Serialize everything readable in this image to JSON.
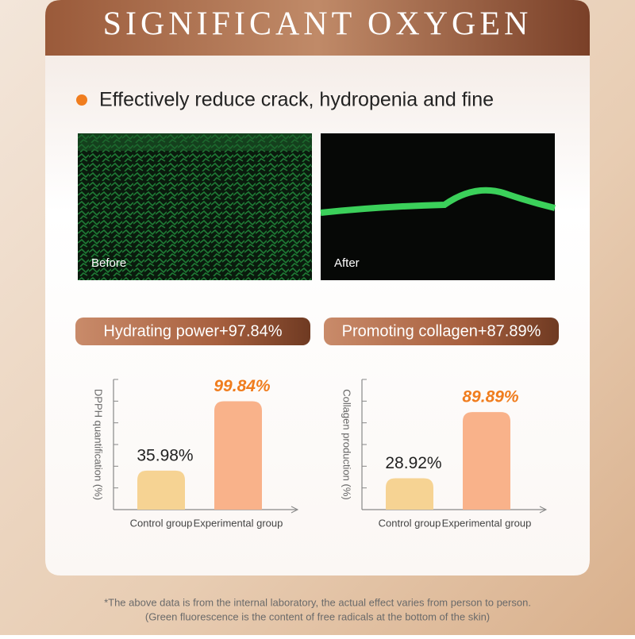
{
  "header": {
    "title": "SIGNIFICANT OXYGEN"
  },
  "bullet": "Effectively reduce crack, hydropenia and fine",
  "images": [
    {
      "label": "Before"
    },
    {
      "label": "After"
    }
  ],
  "chart_data": [
    {
      "type": "bar",
      "title": "Hydrating power+97.84%",
      "y_label": "DPPH quantification (%)",
      "categories": [
        "Control group",
        "Experimental group"
      ],
      "values": [
        35.98,
        99.84
      ],
      "value_labels": [
        "35.98%",
        "99.84%"
      ],
      "colors": [
        "#f6d393",
        "#f9b28a"
      ],
      "ylim": [
        0,
        120
      ],
      "yticks": [
        20,
        40,
        60,
        80,
        100,
        120
      ]
    },
    {
      "type": "bar",
      "title": "Promoting collagen+87.89%",
      "y_label": "Collagen production (%)",
      "categories": [
        "Control group",
        "Experimental group"
      ],
      "values": [
        28.92,
        89.89
      ],
      "value_labels": [
        "28.92%",
        "89.89%"
      ],
      "colors": [
        "#f6d393",
        "#f9b28a"
      ],
      "ylim": [
        0,
        120
      ],
      "yticks": [
        20,
        40,
        60,
        80,
        100,
        120
      ]
    }
  ],
  "footnote": [
    "*The above data is from the internal laboratory, the actual effect varies from person to person.",
    "(Green fluorescence is the content of free radicals at the bottom of the skin)"
  ]
}
